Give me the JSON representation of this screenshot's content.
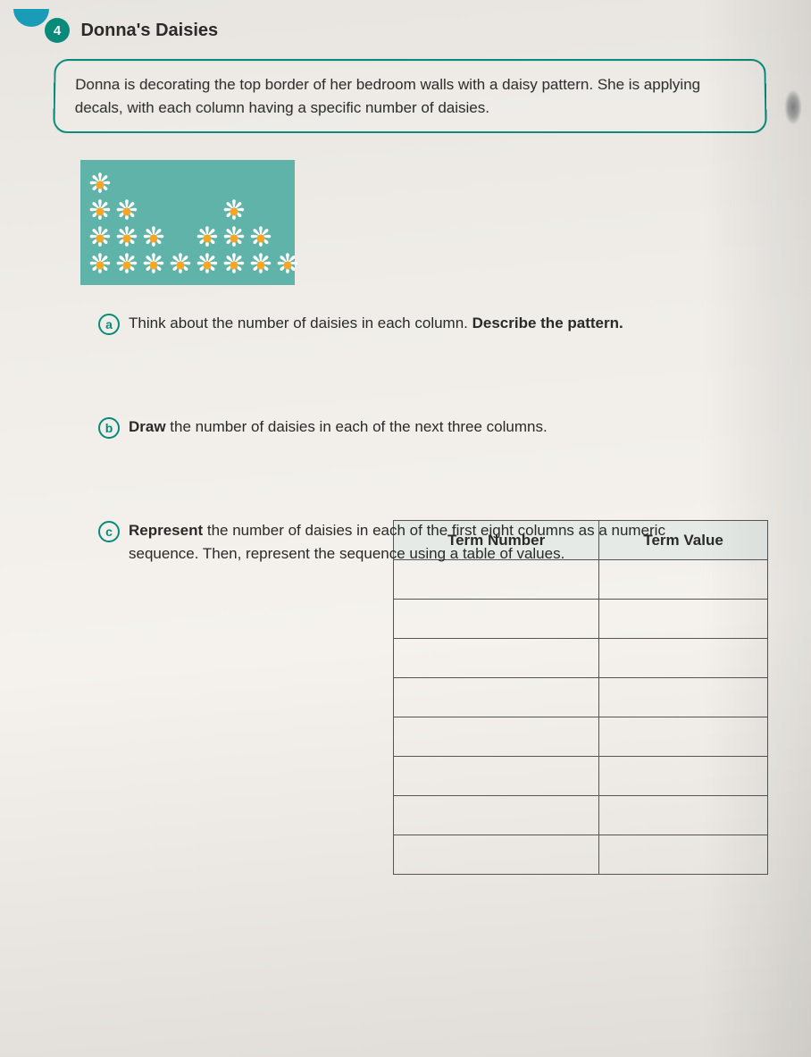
{
  "lesson": {
    "number": "4",
    "title": "Donna's Daisies"
  },
  "prompt": "Donna is decorating the top border of her bedroom walls with a daisy pattern. She is applying decals, with each column having a specific number of daisies.",
  "daisy_columns": [
    4,
    3,
    2,
    1,
    2,
    3,
    2,
    1
  ],
  "panel": {
    "background_color": "#5fb3a8",
    "daisy_petal_color": "#ffffff",
    "daisy_center_color": "#f5a623"
  },
  "questions": {
    "a": {
      "letter": "a",
      "text_before": "Think about the number of daisies in each column. ",
      "text_bold": "Describe the pattern."
    },
    "b": {
      "letter": "b",
      "text_before": "",
      "text_bold": "Draw",
      "text_after": " the number of daisies in each of the next three columns."
    },
    "c": {
      "letter": "c",
      "text_before": "",
      "text_bold": "Represent",
      "text_after": " the number of daisies in each of the first eight columns as a numeric sequence. Then, represent the sequence using a table of values."
    }
  },
  "table": {
    "headers": [
      "Term Number",
      "Term Value"
    ],
    "row_count": 8
  },
  "colors": {
    "accent": "#0a8a7a",
    "text": "#2a2a2a",
    "border": "#555555"
  }
}
